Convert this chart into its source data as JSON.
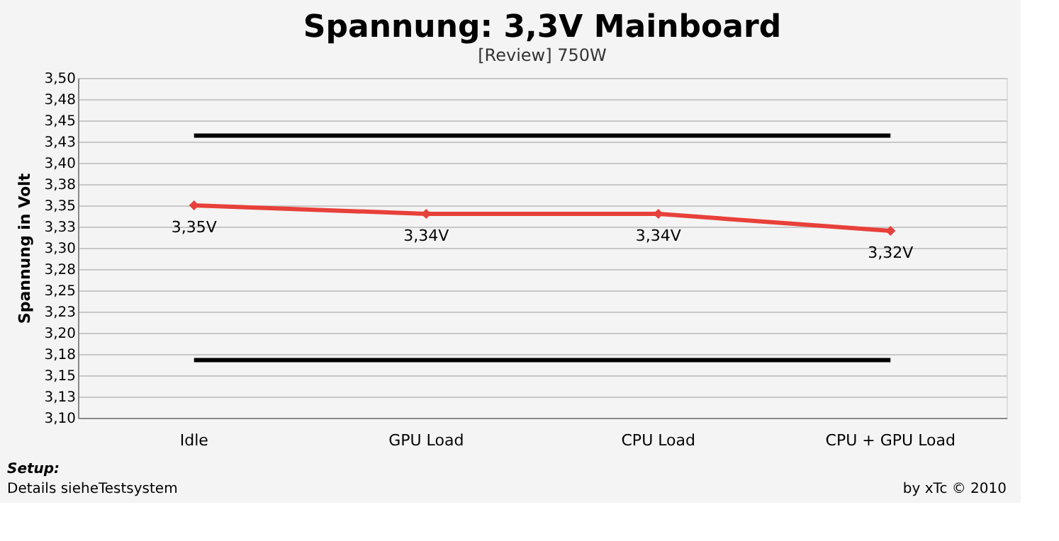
{
  "chart_data": {
    "type": "line",
    "title": "Spannung: 3,3V Mainboard",
    "subtitle": "[Review] 750W",
    "ylabel": "Spannung in Volt",
    "categories": [
      "Idle",
      "GPU Load",
      "CPU Load",
      "CPU + GPU Load"
    ],
    "series": [
      {
        "color": "#e8403a",
        "values": [
          3.35,
          3.34,
          3.34,
          3.32
        ],
        "value_labels": [
          "3,35V",
          "3,34V",
          "3,34V",
          "3,32V"
        ]
      }
    ],
    "ylim": [
      3.1,
      3.5
    ],
    "yticks": [
      {
        "value": 3.1,
        "label": "3,10"
      },
      {
        "value": 3.125,
        "label": "3,13"
      },
      {
        "value": 3.15,
        "label": "3,15"
      },
      {
        "value": 3.175,
        "label": "3,18"
      },
      {
        "value": 3.2,
        "label": "3,20"
      },
      {
        "value": 3.225,
        "label": "3,23"
      },
      {
        "value": 3.25,
        "label": "3,25"
      },
      {
        "value": 3.275,
        "label": "3,28"
      },
      {
        "value": 3.3,
        "label": "3,30"
      },
      {
        "value": 3.325,
        "label": "3,33"
      },
      {
        "value": 3.35,
        "label": "3,35"
      },
      {
        "value": 3.375,
        "label": "3,38"
      },
      {
        "value": 3.4,
        "label": "3,40"
      },
      {
        "value": 3.425,
        "label": "3,43"
      },
      {
        "value": 3.45,
        "label": "3,45"
      },
      {
        "value": 3.475,
        "label": "3,48"
      },
      {
        "value": 3.5,
        "label": "3,50"
      }
    ],
    "ref_lines": [
      {
        "axis": "y",
        "value": 3.432,
        "color": "#000000"
      },
      {
        "axis": "y",
        "value": 3.168,
        "color": "#000000"
      }
    ],
    "grid": "y",
    "marker": "diamond",
    "line_style": "solid",
    "legend": false,
    "annotations": [
      "Setup:",
      "Details sieheTestsystem",
      "by xTc © 2010"
    ]
  }
}
